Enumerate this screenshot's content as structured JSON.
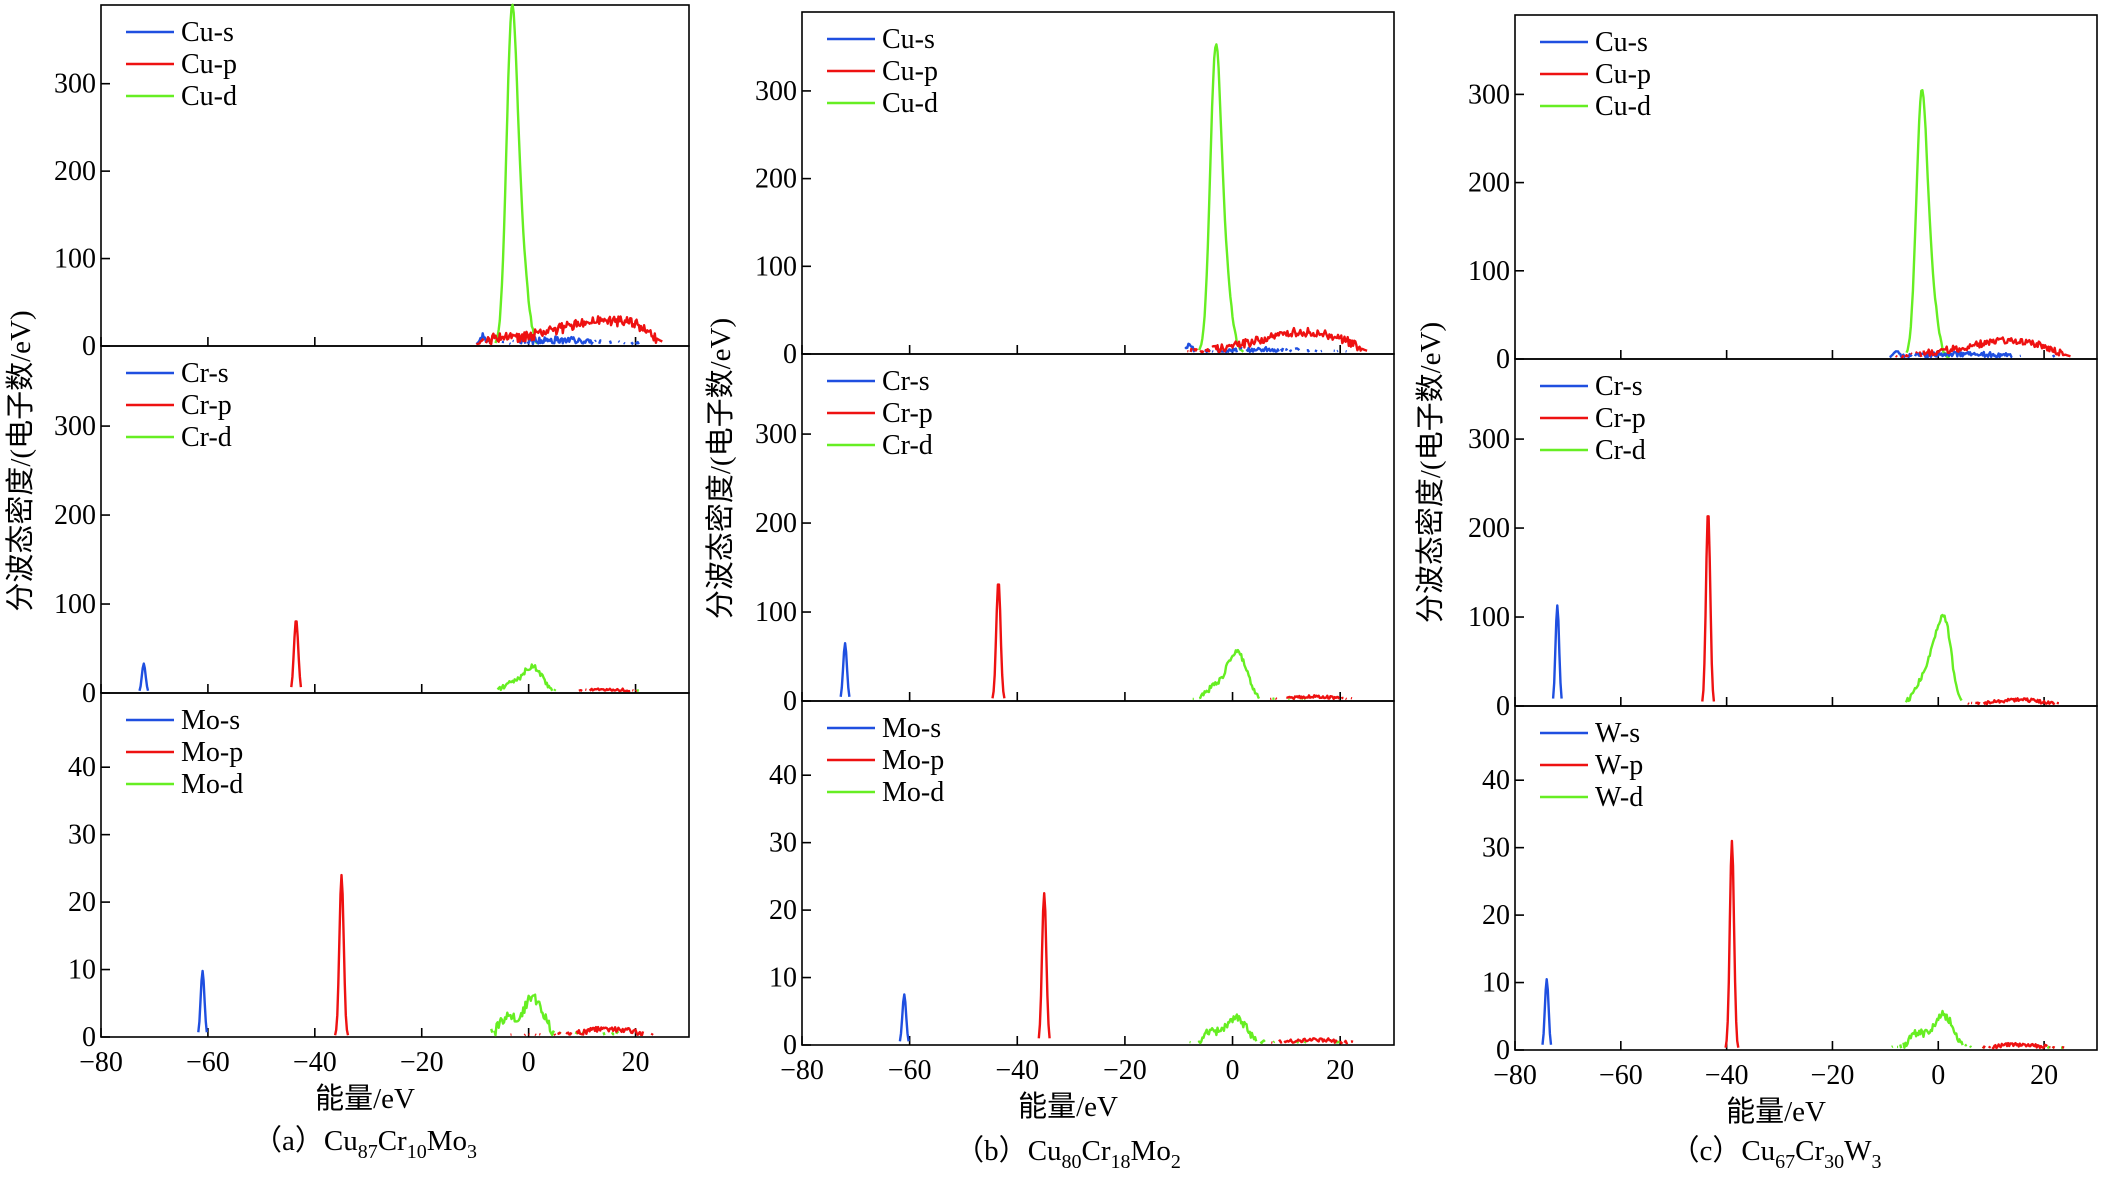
{
  "colors": {
    "s": "#1f4fe0",
    "p": "#ee1111",
    "d": "#66ee22",
    "axis": "#000000"
  },
  "chart_data": [
    {
      "type": "line",
      "caption": {
        "prefix": "（a）",
        "parts": [
          {
            "t": "Cu"
          },
          {
            "t": "87",
            "sub": true
          },
          {
            "t": "Cr"
          },
          {
            "t": "10",
            "sub": true
          },
          {
            "t": "Mo"
          },
          {
            "t": "3",
            "sub": true
          }
        ]
      },
      "ylabel": "分波态密度/(电子数/eV)",
      "xlabel": "能量/eV",
      "xlim": [
        -80,
        30
      ],
      "xticks": [
        -80,
        -60,
        -40,
        -20,
        0,
        20
      ],
      "panels": [
        {
          "element": "Cu",
          "ylim": [
            0,
            390
          ],
          "yticks": [
            0,
            100,
            200,
            300
          ],
          "legend": [
            "Cu-s",
            "Cu-p",
            "Cu-d"
          ],
          "series": [
            {
              "name": "Cu-s",
              "orbital": "s",
              "noise": 4,
              "peaks": [
                [
                  -8.5,
                  9,
                  0.6
                ],
                [
                  5,
                  7,
                  8
                ]
              ]
            },
            {
              "name": "Cu-p",
              "orbital": "p",
              "noise": 6,
              "peaks": [
                [
                  -6,
                  5,
                  2
                ],
                [
                  3,
                  12,
                  6
                ],
                [
                  13,
                  25,
                  5
                ],
                [
                  20,
                  15,
                  3
                ]
              ]
            },
            {
              "name": "Cu-d",
              "orbital": "d",
              "noise": 2,
              "peaks": [
                [
                  -3.2,
                  345,
                  1.0
                ],
                [
                  -1.5,
                  110,
                  1.2
                ]
              ]
            }
          ]
        },
        {
          "element": "Cr",
          "ylim": [
            0,
            390
          ],
          "yticks": [
            0,
            100,
            200,
            300
          ],
          "legend": [
            "Cr-s",
            "Cr-p",
            "Cr-d"
          ],
          "series": [
            {
              "name": "Cr-s",
              "orbital": "s",
              "noise": 0,
              "peaks": [
                [
                  -72,
                  33,
                  0.35
                ]
              ]
            },
            {
              "name": "Cr-p",
              "orbital": "p",
              "noise": 1.5,
              "peaks": [
                [
                  -43.5,
                  83,
                  0.4
                ],
                [
                  15,
                  4,
                  5
                ]
              ]
            },
            {
              "name": "Cr-d",
              "orbital": "d",
              "noise": 3,
              "peaks": [
                [
                  -3.5,
                  10,
                  1.5
                ],
                [
                  0,
                  22,
                  1.5
                ],
                [
                  2,
                  14,
                  1.5
                ]
              ]
            }
          ]
        },
        {
          "element": "Mo",
          "ylim": [
            0,
            51
          ],
          "yticks": [
            0,
            10,
            20,
            30,
            40
          ],
          "legend": [
            "Mo-s",
            "Mo-p",
            "Mo-d"
          ],
          "series": [
            {
              "name": "Mo-s",
              "orbital": "s",
              "noise": 0,
              "peaks": [
                [
                  -61,
                  9.8,
                  0.35
                ]
              ]
            },
            {
              "name": "Mo-p",
              "orbital": "p",
              "noise": 0.4,
              "peaks": [
                [
                  -35,
                  24,
                  0.4
                ],
                [
                  15,
                  1.2,
                  5
                ]
              ]
            },
            {
              "name": "Mo-d",
              "orbital": "d",
              "noise": 0.8,
              "peaks": [
                [
                  -4,
                  3,
                  1.5
                ],
                [
                  0,
                  4,
                  1.5
                ],
                [
                  2,
                  3,
                  1.5
                ]
              ]
            }
          ]
        }
      ]
    },
    {
      "type": "line",
      "caption": {
        "prefix": "（b）",
        "parts": [
          {
            "t": "Cu"
          },
          {
            "t": "80",
            "sub": true
          },
          {
            "t": "Cr"
          },
          {
            "t": "18",
            "sub": true
          },
          {
            "t": "Mo"
          },
          {
            "t": "2",
            "sub": true
          }
        ]
      },
      "ylabel": "分波态密度/(电子数/eV)",
      "xlabel": "能量/eV",
      "xlim": [
        -80,
        30
      ],
      "xticks": [
        -80,
        -60,
        -40,
        -20,
        0,
        20
      ],
      "panels": [
        {
          "element": "Cu",
          "ylim": [
            0,
            390
          ],
          "yticks": [
            0,
            100,
            200,
            300
          ],
          "legend": [
            "Cu-s",
            "Cu-p",
            "Cu-d"
          ],
          "series": [
            {
              "name": "Cu-s",
              "orbital": "s",
              "noise": 3,
              "peaks": [
                [
                  -8,
                  8,
                  0.6
                ],
                [
                  5,
                  5,
                  8
                ]
              ]
            },
            {
              "name": "Cu-p",
              "orbital": "p",
              "noise": 5,
              "peaks": [
                [
                  3,
                  10,
                  6
                ],
                [
                  13,
                  22,
                  5
                ],
                [
                  20,
                  10,
                  3
                ]
              ]
            },
            {
              "name": "Cu-d",
              "orbital": "d",
              "noise": 2,
              "peaks": [
                [
                  -3.2,
                  318,
                  1.0
                ],
                [
                  -1.5,
                  90,
                  1.2
                ]
              ]
            }
          ]
        },
        {
          "element": "Cr",
          "ylim": [
            0,
            390
          ],
          "yticks": [
            0,
            100,
            200,
            300
          ],
          "legend": [
            "Cr-s",
            "Cr-p",
            "Cr-d"
          ],
          "series": [
            {
              "name": "Cr-s",
              "orbital": "s",
              "noise": 0,
              "peaks": [
                [
                  -72,
                  65,
                  0.35
                ]
              ]
            },
            {
              "name": "Cr-p",
              "orbital": "p",
              "noise": 1.5,
              "peaks": [
                [
                  -43.5,
                  135,
                  0.4
                ],
                [
                  15,
                  5,
                  5
                ]
              ]
            },
            {
              "name": "Cr-d",
              "orbital": "d",
              "noise": 3,
              "peaks": [
                [
                  -3.5,
                  15,
                  1.5
                ],
                [
                  0,
                  40,
                  1.5
                ],
                [
                  2,
                  28,
                  1.5
                ]
              ]
            }
          ]
        },
        {
          "element": "Mo",
          "ylim": [
            0,
            51
          ],
          "yticks": [
            0,
            10,
            20,
            30,
            40
          ],
          "legend": [
            "Mo-s",
            "Mo-p",
            "Mo-d"
          ],
          "series": [
            {
              "name": "Mo-s",
              "orbital": "s",
              "noise": 0,
              "peaks": [
                [
                  -61,
                  7.5,
                  0.35
                ]
              ]
            },
            {
              "name": "Mo-p",
              "orbital": "p",
              "noise": 0.3,
              "peaks": [
                [
                  -35,
                  22.5,
                  0.4
                ],
                [
                  15,
                  0.8,
                  5
                ]
              ]
            },
            {
              "name": "Mo-d",
              "orbital": "d",
              "noise": 0.6,
              "peaks": [
                [
                  -4,
                  2,
                  1.5
                ],
                [
                  0,
                  3,
                  1.5
                ],
                [
                  2,
                  2,
                  1.5
                ]
              ]
            }
          ]
        }
      ]
    },
    {
      "type": "line",
      "caption": {
        "prefix": "（c）",
        "parts": [
          {
            "t": "Cu"
          },
          {
            "t": "67",
            "sub": true
          },
          {
            "t": "Cr"
          },
          {
            "t": "30",
            "sub": true
          },
          {
            "t": "W"
          },
          {
            "t": "3",
            "sub": true
          }
        ]
      },
      "ylabel": "分波态密度/(电子数/eV)",
      "xlabel": "能量/eV",
      "xlim": [
        -80,
        30
      ],
      "xticks": [
        -80,
        -60,
        -40,
        -20,
        0,
        20
      ],
      "panels": [
        {
          "element": "Cu",
          "ylim": [
            0,
            390
          ],
          "yticks": [
            0,
            100,
            200,
            300
          ],
          "legend": [
            "Cu-s",
            "Cu-p",
            "Cu-d"
          ],
          "series": [
            {
              "name": "Cu-s",
              "orbital": "s",
              "noise": 3,
              "peaks": [
                [
                  -8,
                  7,
                  0.6
                ],
                [
                  5,
                  6,
                  8
                ]
              ]
            },
            {
              "name": "Cu-p",
              "orbital": "p",
              "noise": 4,
              "peaks": [
                [
                  3,
                  9,
                  6
                ],
                [
                  13,
                  18,
                  5
                ],
                [
                  20,
                  8,
                  3
                ]
              ]
            },
            {
              "name": "Cu-d",
              "orbital": "d",
              "noise": 2,
              "peaks": [
                [
                  -3.2,
                  275,
                  1.0
                ],
                [
                  -1.5,
                  80,
                  1.2
                ]
              ]
            }
          ]
        },
        {
          "element": "Cr",
          "ylim": [
            0,
            390
          ],
          "yticks": [
            0,
            100,
            200,
            300
          ],
          "legend": [
            "Cr-s",
            "Cr-p",
            "Cr-d"
          ],
          "series": [
            {
              "name": "Cr-s",
              "orbital": "s",
              "noise": 0,
              "peaks": [
                [
                  -72,
                  113,
                  0.35
                ]
              ]
            },
            {
              "name": "Cr-p",
              "orbital": "p",
              "noise": 2,
              "peaks": [
                [
                  -43.5,
                  220,
                  0.4
                ],
                [
                  15,
                  7,
                  5
                ]
              ]
            },
            {
              "name": "Cr-d",
              "orbital": "d",
              "noise": 3,
              "peaks": [
                [
                  -3.5,
                  20,
                  1.5
                ],
                [
                  -0.5,
                  62,
                  1.5
                ],
                [
                  1.5,
                  70,
                  1.2
                ]
              ]
            }
          ]
        },
        {
          "element": "W",
          "ylim": [
            0,
            51
          ],
          "yticks": [
            0,
            10,
            20,
            30,
            40
          ],
          "legend": [
            "W-s",
            "W-p",
            "W-d"
          ],
          "series": [
            {
              "name": "W-s",
              "orbital": "s",
              "noise": 0,
              "peaks": [
                [
                  -74,
                  10.5,
                  0.35
                ]
              ]
            },
            {
              "name": "W-p",
              "orbital": "p",
              "noise": 0.3,
              "peaks": [
                [
                  -39,
                  31,
                  0.4
                ],
                [
                  15,
                  0.8,
                  5
                ]
              ]
            },
            {
              "name": "W-d",
              "orbital": "d",
              "noise": 0.6,
              "peaks": [
                [
                  -4,
                  2.5,
                  1.5
                ],
                [
                  0,
                  3.5,
                  1.5
                ],
                [
                  2,
                  3,
                  1.5
                ]
              ]
            }
          ]
        }
      ]
    }
  ]
}
